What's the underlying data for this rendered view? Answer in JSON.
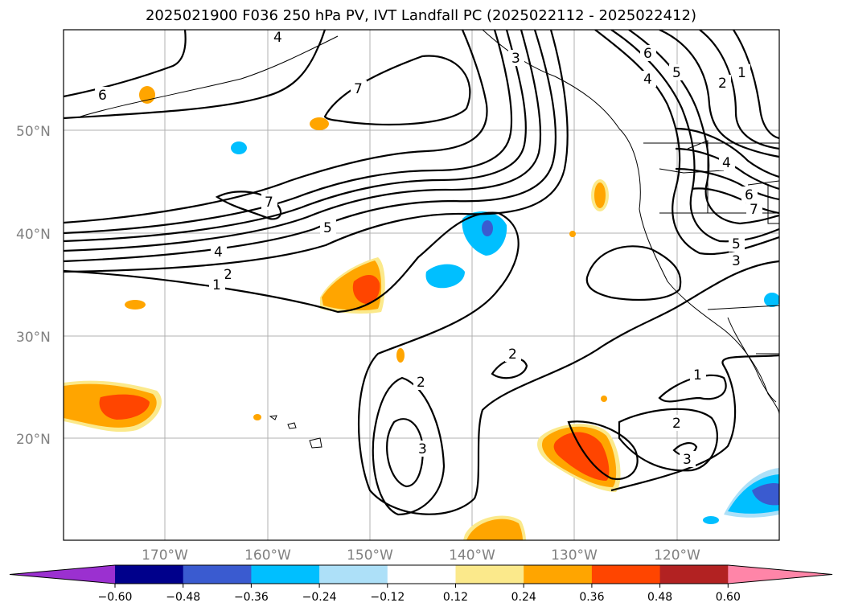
{
  "title": "2025021900 F036 250 hPa PV, IVT Landfall PC (2025022112 - 2025022412)",
  "latitude_labels": [
    "50°N",
    "40°N",
    "30°N",
    "20°N"
  ],
  "longitude_labels": [
    "170°W",
    "160°W",
    "150°W",
    "140°W",
    "130°W",
    "120°W"
  ],
  "contour_labels": [
    "6",
    "7",
    "5",
    "4",
    "2",
    "1",
    "7",
    "6",
    "4",
    "5",
    "2",
    "1",
    "4",
    "6",
    "7",
    "5",
    "3",
    "2",
    "2",
    "3",
    "1",
    "2",
    "3",
    "3",
    "4"
  ],
  "colorbar": {
    "colors": [
      "#9b30d0",
      "#00008b",
      "#3a5bd0",
      "#00bfff",
      "#ade0f8",
      "#ffffff",
      "#fbe98b",
      "#ffa500",
      "#ff4500",
      "#b22222",
      "#ff85a8"
    ],
    "tick_labels": [
      "−0.60",
      "−0.48",
      "−0.36",
      "−0.24",
      "−0.12",
      "0.12",
      "0.24",
      "0.36",
      "0.48",
      "0.60"
    ]
  }
}
